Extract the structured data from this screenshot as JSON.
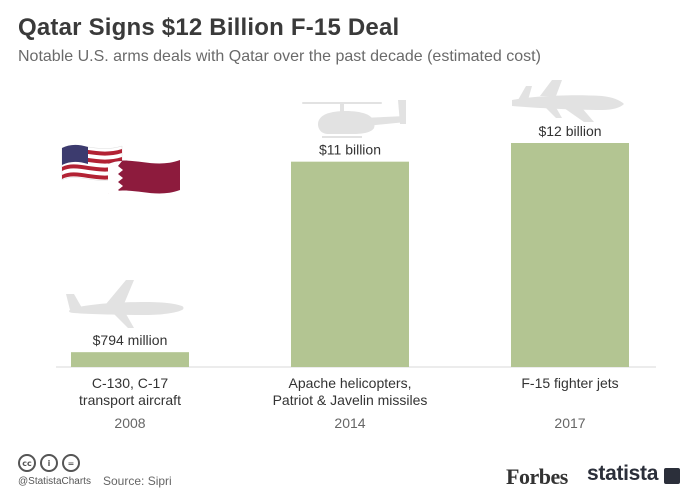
{
  "header": {
    "title": "Qatar Signs $12 Billion F-15 Deal",
    "subtitle": "Notable U.S. arms deals with Qatar over the past decade (estimated cost)"
  },
  "chart_data": {
    "type": "bar",
    "categories": [
      "C-130, C-17\ntransport aircraft",
      "Apache helicopters,\nPatriot & Javelin missiles",
      "F-15 fighter jets"
    ],
    "years": [
      "2008",
      "2014",
      "2017"
    ],
    "values": [
      0.794,
      11,
      12
    ],
    "value_labels": [
      "$794 million",
      "$11 billion",
      "$12 billion"
    ],
    "unit": "billion USD",
    "ylim": [
      0,
      12
    ],
    "grid": false,
    "legend": "none",
    "bar_color": "#b3c592",
    "icons": [
      "usa-qatar-flags-icon",
      "transport-plane-icon",
      "helicopter-icon",
      "fighter-jet-icon"
    ]
  },
  "footer": {
    "handle": "@StatistaCharts",
    "source": "Source: Sipri",
    "forbes": "Forbes",
    "statista": "statista"
  },
  "colors": {
    "bar": "#b3c592",
    "silhouette": "#e2e2e2",
    "usa_red": "#b22234",
    "usa_blue": "#3c3b6e",
    "qatar_maroon": "#8d1b3d"
  }
}
